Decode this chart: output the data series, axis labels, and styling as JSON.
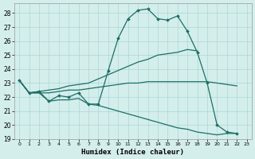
{
  "xlabel": "Humidex (Indice chaleur)",
  "background_color": "#d4eeec",
  "grid_color": "#aad8d4",
  "line_color": "#1e6e65",
  "xlim": [
    -0.5,
    23.5
  ],
  "ylim": [
    19,
    28.7
  ],
  "xticks": [
    0,
    1,
    2,
    3,
    4,
    5,
    6,
    7,
    8,
    9,
    10,
    11,
    12,
    13,
    14,
    15,
    16,
    17,
    18,
    19,
    20,
    21,
    22,
    23
  ],
  "yticks": [
    19,
    20,
    21,
    22,
    23,
    24,
    25,
    26,
    27,
    28
  ],
  "curve_main_x": [
    0,
    1,
    2,
    3,
    4,
    5,
    6,
    7,
    8,
    9,
    10,
    11,
    12,
    13,
    14,
    15,
    16,
    17,
    18,
    19,
    20,
    21,
    22
  ],
  "curve_main_y": [
    23.2,
    22.3,
    22.4,
    21.7,
    22.1,
    22.0,
    22.3,
    21.5,
    21.5,
    23.9,
    26.2,
    27.6,
    28.2,
    28.3,
    27.6,
    27.5,
    27.8,
    26.7,
    25.2,
    23.0,
    20.0,
    19.5,
    19.4
  ],
  "curve_upper_x": [
    0,
    1,
    2,
    3,
    4,
    5,
    6,
    7,
    8,
    9,
    10,
    11,
    12,
    13,
    14,
    15,
    16,
    17,
    18
  ],
  "curve_upper_y": [
    23.2,
    22.3,
    22.4,
    22.5,
    22.6,
    22.8,
    22.9,
    23.0,
    23.3,
    23.6,
    23.9,
    24.2,
    24.5,
    24.7,
    25.0,
    25.1,
    25.2,
    25.4,
    25.3
  ],
  "curve_mid_x": [
    0,
    1,
    2,
    3,
    4,
    5,
    6,
    7,
    8,
    9,
    10,
    11,
    12,
    13,
    14,
    15,
    16,
    17,
    18,
    19,
    20,
    21,
    22
  ],
  "curve_mid_y": [
    23.2,
    22.3,
    22.3,
    22.3,
    22.4,
    22.5,
    22.5,
    22.6,
    22.7,
    22.8,
    22.9,
    23.0,
    23.0,
    23.1,
    23.1,
    23.1,
    23.1,
    23.1,
    23.1,
    23.1,
    23.0,
    22.9,
    22.8
  ],
  "curve_lower_x": [
    0,
    1,
    2,
    3,
    4,
    5,
    6,
    7,
    8,
    9,
    10,
    11,
    12,
    13,
    14,
    15,
    16,
    17,
    18,
    19,
    20,
    21,
    22
  ],
  "curve_lower_y": [
    23.2,
    22.3,
    22.3,
    21.7,
    21.8,
    21.8,
    21.9,
    21.5,
    21.4,
    21.2,
    21.0,
    20.8,
    20.6,
    20.4,
    20.2,
    20.0,
    19.8,
    19.7,
    19.5,
    19.4,
    19.3,
    19.4,
    19.4
  ]
}
